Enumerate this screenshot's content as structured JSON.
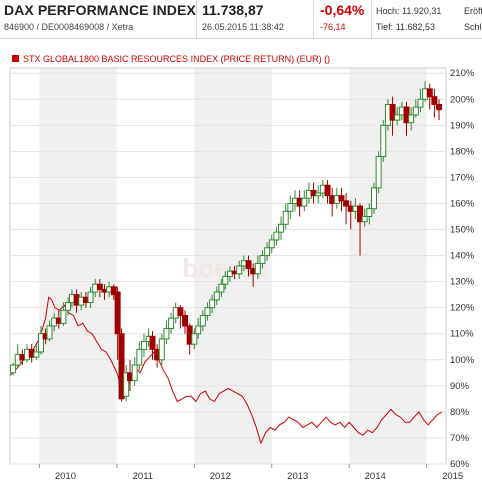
{
  "header": {
    "title": "DAX PERFORMANCE INDEX",
    "subtitle": "846900 / DE0008469008 / Xetra",
    "price": "11.738,87",
    "datetime": "26.05.2015 11:38:42",
    "change_pct": "-0,64%",
    "change_abs": "-76,14",
    "high_label": "Hoch:",
    "high_value": "11.920,31",
    "low_label": "Tief:",
    "low_value": "11.682,53",
    "open_label": "Eröff",
    "close_label": "Schl"
  },
  "colors": {
    "up": "#2e8b2e",
    "down": "#a00000",
    "compare": "#cc0000",
    "band": "#f0f0f0"
  },
  "chart_data": {
    "type": "candlestick",
    "legend": "STX GLOBAL1800 BASIC RESOURCES INDEX (PRICE RETURN) (EUR) ()",
    "watermark": "boerse",
    "x_ticks": [
      {
        "label": "2010",
        "t": 2010.0
      },
      {
        "label": "2011",
        "t": 2011.0
      },
      {
        "label": "2012",
        "t": 2012.0
      },
      {
        "label": "2013",
        "t": 2013.0
      },
      {
        "label": "2014",
        "t": 2014.0
      },
      {
        "label": "2015",
        "t": 2015.0
      }
    ],
    "y_ticks": [
      "210%",
      "200%",
      "190%",
      "180%",
      "170%",
      "160%",
      "150%",
      "140%",
      "130%",
      "120%",
      "110%",
      "100%",
      "90%",
      "80%",
      "70%",
      "60%"
    ],
    "ylim": [
      60,
      212
    ],
    "xlim": [
      2009.62,
      2015.25
    ],
    "candles": [
      [
        2009.66,
        95,
        98,
        94,
        99
      ],
      [
        2009.72,
        98,
        102,
        97,
        106
      ],
      [
        2009.78,
        102,
        100,
        98,
        104
      ],
      [
        2009.84,
        100,
        104,
        99,
        106
      ],
      [
        2009.9,
        104,
        101,
        99,
        106
      ],
      [
        2009.96,
        101,
        103,
        100,
        106
      ],
      [
        2010.02,
        103,
        110,
        102,
        113
      ],
      [
        2010.08,
        110,
        108,
        106,
        112
      ],
      [
        2010.13,
        108,
        113,
        107,
        115
      ],
      [
        2010.19,
        113,
        116,
        111,
        118
      ],
      [
        2010.25,
        116,
        114,
        112,
        119
      ],
      [
        2010.31,
        114,
        119,
        113,
        122
      ],
      [
        2010.37,
        119,
        122,
        117,
        124
      ],
      [
        2010.42,
        122,
        125,
        120,
        127
      ],
      [
        2010.48,
        125,
        121,
        118,
        127
      ],
      [
        2010.54,
        121,
        124,
        119,
        126
      ],
      [
        2010.6,
        124,
        122,
        120,
        126
      ],
      [
        2010.66,
        122,
        126,
        120,
        128
      ],
      [
        2010.72,
        126,
        129,
        124,
        131
      ],
      [
        2010.78,
        129,
        127,
        124,
        131
      ],
      [
        2010.84,
        127,
        126,
        123,
        129
      ],
      [
        2010.9,
        126,
        128,
        124,
        130
      ],
      [
        2010.96,
        128,
        125,
        123,
        129
      ],
      [
        2011.01,
        126,
        110,
        100,
        128
      ],
      [
        2011.06,
        110,
        85,
        84,
        112
      ],
      [
        2011.12,
        86,
        95,
        84,
        98
      ],
      [
        2011.17,
        95,
        92,
        88,
        100
      ],
      [
        2011.23,
        92,
        98,
        90,
        101
      ],
      [
        2011.29,
        98,
        104,
        96,
        107
      ],
      [
        2011.35,
        104,
        107,
        101,
        110
      ],
      [
        2011.41,
        107,
        109,
        105,
        112
      ],
      [
        2011.46,
        109,
        104,
        100,
        111
      ],
      [
        2011.52,
        104,
        100,
        97,
        106
      ],
      [
        2011.58,
        100,
        108,
        98,
        110
      ],
      [
        2011.64,
        108,
        112,
        106,
        115
      ],
      [
        2011.7,
        112,
        116,
        110,
        118
      ],
      [
        2011.76,
        116,
        120,
        114,
        122
      ],
      [
        2011.82,
        120,
        117,
        112,
        121
      ],
      [
        2011.88,
        117,
        113,
        110,
        119
      ],
      [
        2011.94,
        113,
        106,
        102,
        114
      ],
      [
        2012.0,
        106,
        110,
        104,
        112
      ],
      [
        2012.05,
        110,
        113,
        108,
        116
      ],
      [
        2012.11,
        113,
        117,
        111,
        119
      ],
      [
        2012.17,
        117,
        120,
        115,
        122
      ],
      [
        2012.23,
        120,
        123,
        118,
        125
      ],
      [
        2012.29,
        123,
        126,
        121,
        128
      ],
      [
        2012.35,
        126,
        129,
        124,
        131
      ],
      [
        2012.4,
        129,
        132,
        127,
        134
      ],
      [
        2012.46,
        132,
        134,
        130,
        136
      ],
      [
        2012.52,
        134,
        133,
        131,
        136
      ],
      [
        2012.58,
        133,
        136,
        131,
        138
      ],
      [
        2012.64,
        136,
        138,
        134,
        140
      ],
      [
        2012.7,
        138,
        135,
        132,
        140
      ],
      [
        2012.76,
        135,
        133,
        128,
        137
      ],
      [
        2012.82,
        133,
        137,
        131,
        140
      ],
      [
        2012.88,
        137,
        140,
        135,
        142
      ],
      [
        2012.94,
        140,
        143,
        138,
        145
      ],
      [
        2013.0,
        143,
        146,
        141,
        148
      ],
      [
        2013.06,
        146,
        149,
        144,
        151
      ],
      [
        2013.12,
        149,
        152,
        146,
        155
      ],
      [
        2013.18,
        152,
        157,
        150,
        160
      ],
      [
        2013.24,
        157,
        160,
        154,
        163
      ],
      [
        2013.3,
        160,
        162,
        157,
        165
      ],
      [
        2013.36,
        162,
        159,
        155,
        165
      ],
      [
        2013.42,
        159,
        162,
        157,
        165
      ],
      [
        2013.48,
        162,
        165,
        160,
        168
      ],
      [
        2013.54,
        165,
        163,
        160,
        168
      ],
      [
        2013.6,
        163,
        164,
        160,
        167
      ],
      [
        2013.66,
        164,
        167,
        162,
        169
      ],
      [
        2013.72,
        167,
        163,
        160,
        169
      ],
      [
        2013.78,
        163,
        160,
        155,
        166
      ],
      [
        2013.84,
        160,
        163,
        158,
        166
      ],
      [
        2013.9,
        163,
        161,
        157,
        166
      ],
      [
        2013.96,
        161,
        159,
        152,
        164
      ],
      [
        2014.02,
        159,
        157,
        150,
        161
      ],
      [
        2014.08,
        157,
        159,
        154,
        162
      ],
      [
        2014.14,
        159,
        153,
        140,
        160
      ],
      [
        2014.2,
        153,
        155,
        151,
        158
      ],
      [
        2014.26,
        155,
        158,
        152,
        160
      ],
      [
        2014.32,
        158,
        166,
        156,
        168
      ],
      [
        2014.38,
        166,
        178,
        164,
        180
      ],
      [
        2014.44,
        178,
        190,
        176,
        192
      ],
      [
        2014.5,
        190,
        198,
        188,
        200
      ],
      [
        2014.56,
        198,
        192,
        186,
        201
      ],
      [
        2014.62,
        192,
        194,
        190,
        197
      ],
      [
        2014.68,
        194,
        197,
        192,
        199
      ],
      [
        2014.74,
        197,
        191,
        186,
        199
      ],
      [
        2014.8,
        191,
        194,
        188,
        197
      ],
      [
        2014.86,
        194,
        197,
        193,
        200
      ],
      [
        2014.92,
        197,
        200,
        195,
        204
      ],
      [
        2014.98,
        200,
        204,
        199,
        207
      ],
      [
        2015.04,
        204,
        201,
        196,
        206
      ],
      [
        2015.1,
        201,
        198,
        193,
        204
      ],
      [
        2015.16,
        198,
        196,
        192,
        200
      ]
    ],
    "compare_line": [
      [
        2009.62,
        94
      ],
      [
        2009.72,
        97
      ],
      [
        2009.82,
        101
      ],
      [
        2009.92,
        104
      ],
      [
        2010.0,
        108
      ],
      [
        2010.08,
        116
      ],
      [
        2010.12,
        124
      ],
      [
        2010.16,
        123
      ],
      [
        2010.2,
        120
      ],
      [
        2010.26,
        119
      ],
      [
        2010.32,
        121
      ],
      [
        2010.38,
        118
      ],
      [
        2010.44,
        117
      ],
      [
        2010.5,
        113
      ],
      [
        2010.56,
        114
      ],
      [
        2010.62,
        111
      ],
      [
        2010.68,
        110
      ],
      [
        2010.74,
        107
      ],
      [
        2010.8,
        104
      ],
      [
        2010.86,
        103
      ],
      [
        2010.92,
        100
      ],
      [
        2011.0,
        95
      ],
      [
        2011.06,
        89
      ],
      [
        2011.1,
        86
      ],
      [
        2011.14,
        90
      ],
      [
        2011.18,
        93
      ],
      [
        2011.24,
        97
      ],
      [
        2011.3,
        95
      ],
      [
        2011.36,
        99
      ],
      [
        2011.42,
        101
      ],
      [
        2011.48,
        103
      ],
      [
        2011.54,
        100
      ],
      [
        2011.6,
        96
      ],
      [
        2011.66,
        93
      ],
      [
        2011.72,
        88
      ],
      [
        2011.78,
        84
      ],
      [
        2011.84,
        85
      ],
      [
        2011.9,
        86
      ],
      [
        2011.96,
        86
      ],
      [
        2012.02,
        84
      ],
      [
        2012.08,
        87
      ],
      [
        2012.14,
        88
      ],
      [
        2012.2,
        85
      ],
      [
        2012.26,
        84
      ],
      [
        2012.32,
        87
      ],
      [
        2012.38,
        88
      ],
      [
        2012.44,
        89
      ],
      [
        2012.5,
        88
      ],
      [
        2012.56,
        87
      ],
      [
        2012.62,
        86
      ],
      [
        2012.68,
        83
      ],
      [
        2012.74,
        79
      ],
      [
        2012.8,
        74
      ],
      [
        2012.86,
        68
      ],
      [
        2012.92,
        72
      ],
      [
        2012.98,
        74
      ],
      [
        2013.04,
        73
      ],
      [
        2013.1,
        75
      ],
      [
        2013.16,
        76
      ],
      [
        2013.22,
        78
      ],
      [
        2013.28,
        77
      ],
      [
        2013.34,
        76
      ],
      [
        2013.4,
        74
      ],
      [
        2013.46,
        75
      ],
      [
        2013.52,
        76
      ],
      [
        2013.58,
        74
      ],
      [
        2013.64,
        76
      ],
      [
        2013.7,
        78
      ],
      [
        2013.76,
        76
      ],
      [
        2013.82,
        75
      ],
      [
        2013.88,
        76
      ],
      [
        2013.94,
        74
      ],
      [
        2014.0,
        76
      ],
      [
        2014.06,
        74
      ],
      [
        2014.12,
        72
      ],
      [
        2014.18,
        71
      ],
      [
        2014.24,
        73
      ],
      [
        2014.3,
        72
      ],
      [
        2014.36,
        74
      ],
      [
        2014.42,
        77
      ],
      [
        2014.48,
        79
      ],
      [
        2014.54,
        81
      ],
      [
        2014.6,
        79
      ],
      [
        2014.66,
        78
      ],
      [
        2014.72,
        76
      ],
      [
        2014.78,
        76
      ],
      [
        2014.84,
        78
      ],
      [
        2014.9,
        80
      ],
      [
        2014.96,
        77
      ],
      [
        2015.02,
        75
      ],
      [
        2015.08,
        77
      ],
      [
        2015.14,
        79
      ],
      [
        2015.2,
        80
      ]
    ]
  }
}
